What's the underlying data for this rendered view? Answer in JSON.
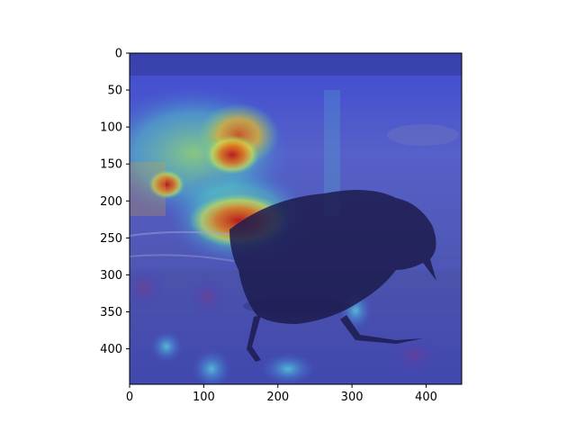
{
  "figure": {
    "type": "image",
    "description_hidden": true
  },
  "axes": {
    "x_ticks": [
      "0",
      "100",
      "200",
      "300",
      "400"
    ],
    "x_tick_values": [
      0,
      100,
      200,
      300,
      400
    ],
    "y_ticks": [
      "0",
      "50",
      "100",
      "150",
      "200",
      "250",
      "300",
      "350",
      "400"
    ],
    "y_tick_values": [
      0,
      50,
      100,
      150,
      200,
      250,
      300,
      350,
      400
    ],
    "xlim": [
      0,
      448
    ],
    "ylim": [
      448,
      0
    ]
  },
  "colors": {
    "overlay_base": "#3a44c8",
    "heat_hot": "#c8281a",
    "heat_warm": "#e8a21c",
    "heat_mid": "#6fe07a",
    "heat_cool": "#4fd3e8",
    "bird_dark": "#1c1a4a",
    "ground": "#5b5f8f"
  }
}
